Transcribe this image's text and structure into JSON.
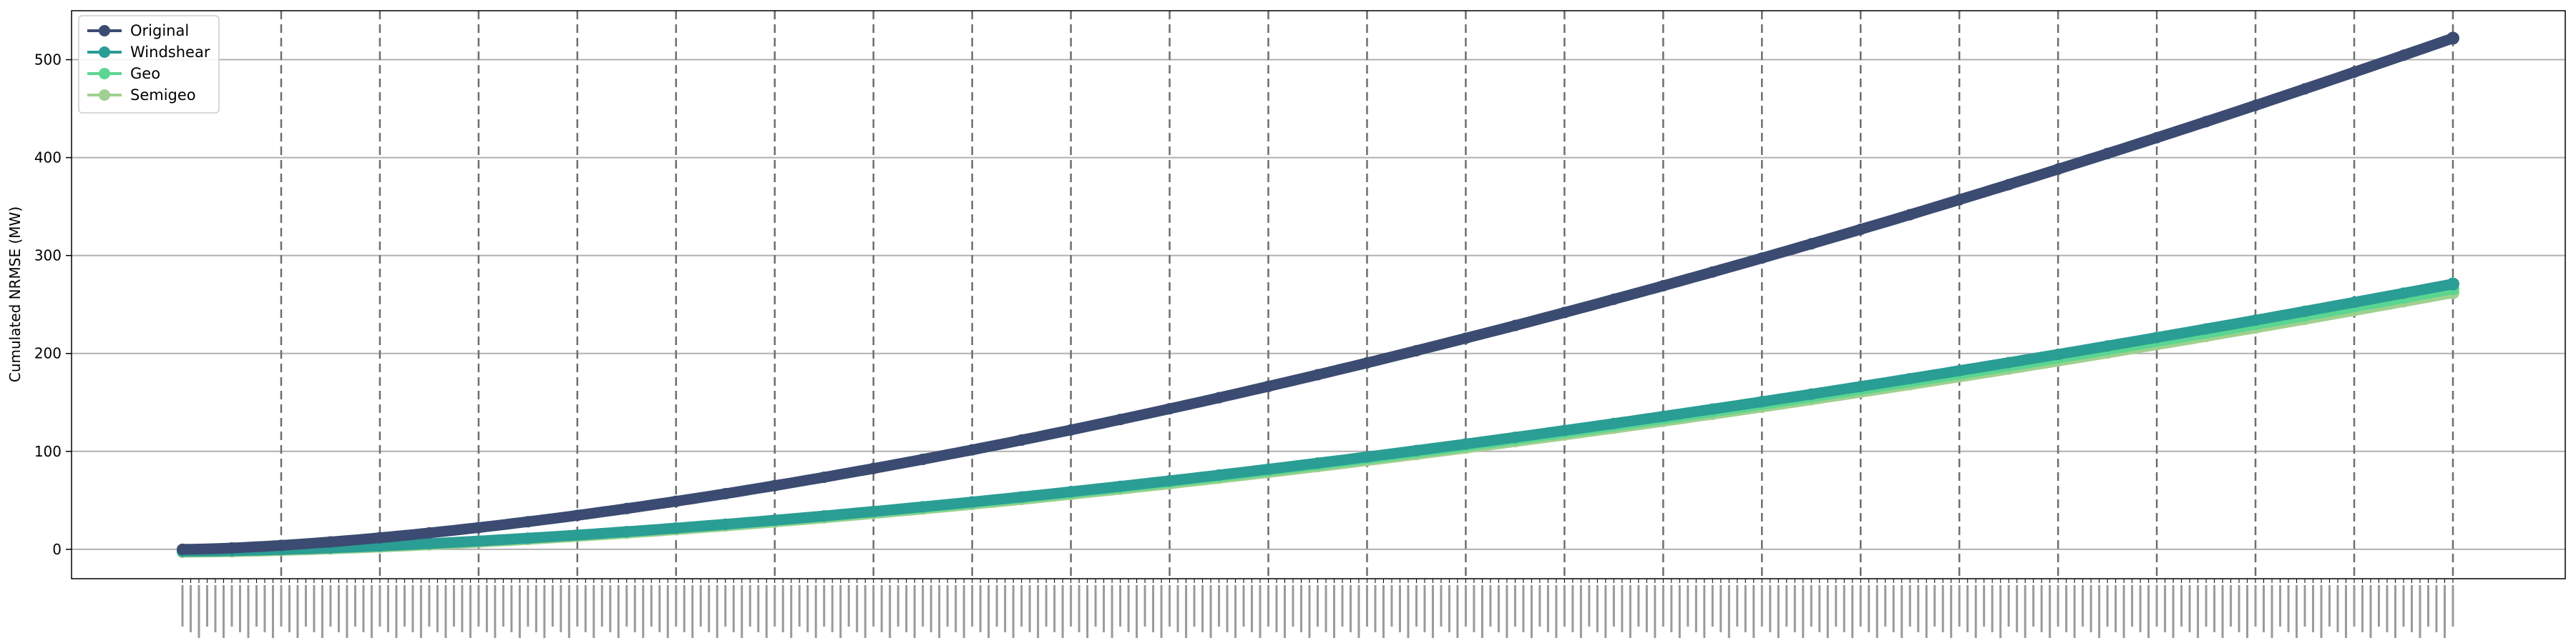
{
  "chart_data": {
    "type": "line",
    "title": "",
    "xlabel": "",
    "ylabel": "Cumulated NRMSE (MW)",
    "grid": "horizontal",
    "ylim": [
      -30,
      550
    ],
    "yticks": [
      0,
      100,
      200,
      300,
      400,
      500
    ],
    "x_count": 277,
    "x_tick_label_note": "dense rotated timestamps, illegible",
    "vertical_markers_every": 12,
    "legend_position": "top-left",
    "series": [
      {
        "name": "Original",
        "color": "#3b4b71",
        "start": 0,
        "end": 522,
        "shape": 1.55
      },
      {
        "name": "Windshear",
        "color": "#2a9d94",
        "start": -2,
        "end": 271,
        "shape": 1.6
      },
      {
        "name": "Geo",
        "color": "#5ad691",
        "start": -2,
        "end": 266,
        "shape": 1.6
      },
      {
        "name": "Semigeo",
        "color": "#9fd08f",
        "start": -3,
        "end": 262,
        "shape": 1.6
      }
    ]
  }
}
